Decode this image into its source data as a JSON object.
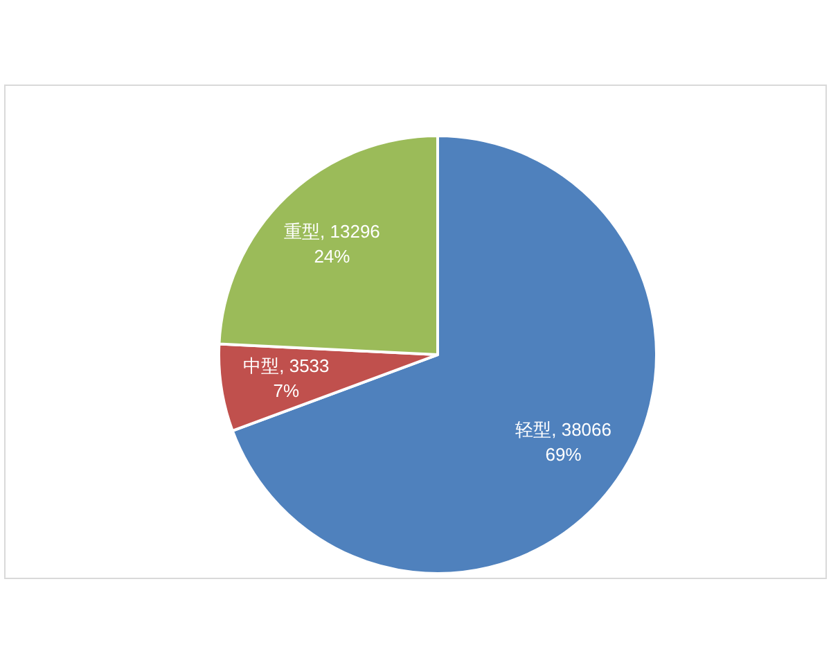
{
  "chart_data": {
    "type": "pie",
    "categories": [
      "轻型",
      "中型",
      "重型"
    ],
    "values": [
      38066,
      3533,
      13296
    ],
    "colors": [
      "#4f81bd",
      "#c0504d",
      "#9bbb59"
    ],
    "value_labels": [
      "38066\n69%",
      "3533\n7%",
      "13296\n24%"
    ]
  }
}
